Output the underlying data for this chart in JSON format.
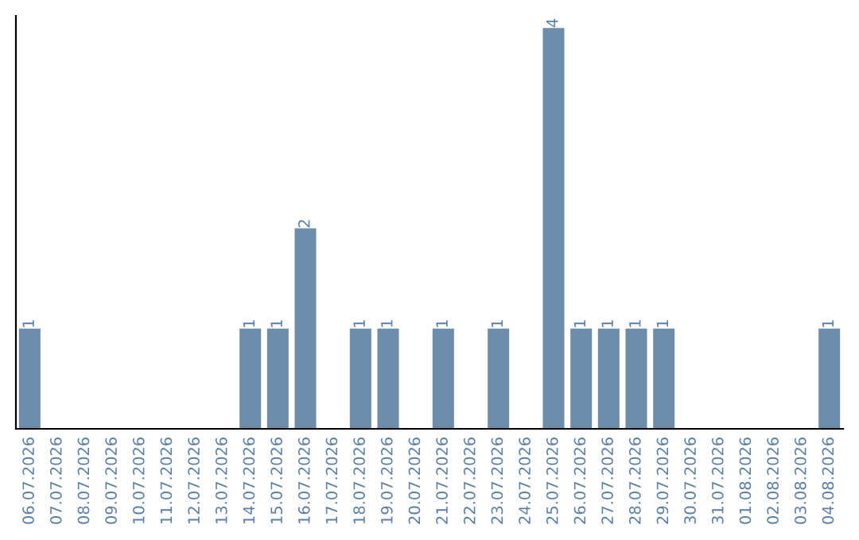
{
  "chart_data": {
    "type": "bar",
    "categories": [
      "06.07.2026",
      "07.07.2026",
      "08.07.2026",
      "09.07.2026",
      "10.07.2026",
      "11.07.2026",
      "12.07.2026",
      "13.07.2026",
      "14.07.2026",
      "15.07.2026",
      "16.07.2026",
      "17.07.2026",
      "18.07.2026",
      "19.07.2026",
      "20.07.2026",
      "21.07.2026",
      "22.07.2026",
      "23.07.2026",
      "24.07.2026",
      "25.07.2026",
      "26.07.2026",
      "27.07.2026",
      "28.07.2026",
      "29.07.2026",
      "30.07.2026",
      "31.07.2026",
      "01.08.2026",
      "02.08.2026",
      "03.08.2026",
      "04.08.2026"
    ],
    "values": [
      1,
      0,
      0,
      0,
      0,
      0,
      0,
      0,
      1,
      1,
      2,
      0,
      1,
      1,
      0,
      1,
      0,
      1,
      0,
      4,
      1,
      1,
      1,
      1,
      0,
      0,
      0,
      0,
      0,
      1
    ],
    "value_labels": [
      "1",
      null,
      null,
      null,
      null,
      null,
      null,
      null,
      "1",
      "1",
      "2",
      null,
      "1",
      "1",
      null,
      "1",
      null,
      "1",
      null,
      "4",
      "1",
      "1",
      "1",
      "1",
      null,
      null,
      null,
      null,
      null,
      "1"
    ],
    "color": "#6d8dab",
    "tick_labels": "x",
    "grid": false
  }
}
